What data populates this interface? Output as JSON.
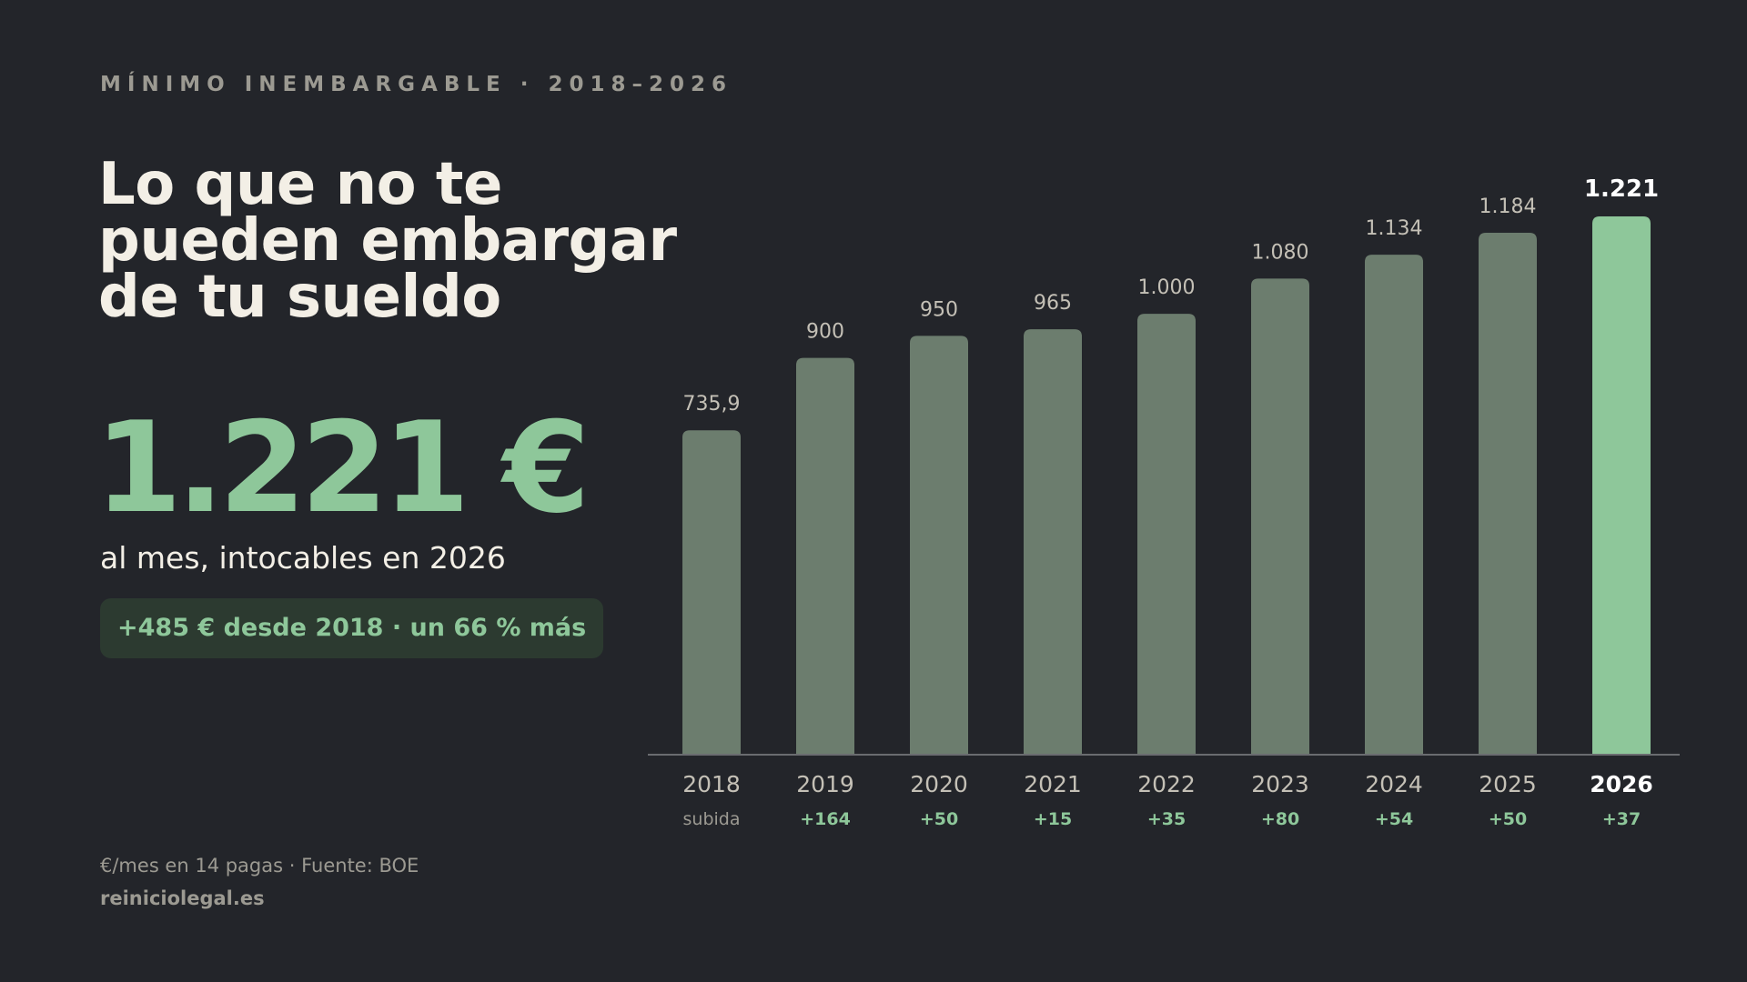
{
  "header": {
    "kicker": "MÍNIMO INEMBARGABLE · 2018–2026",
    "title": "Lo que no te pueden embargar de tu sueldo"
  },
  "highlight": {
    "value": "1.221 €",
    "subtitle": "al mes, intocables en 2026",
    "badge": "+485 € desde 2018 · un 66 % más"
  },
  "footer": {
    "note": "€/mes en 14 pagas · Fuente: BOE",
    "brand": "reiniciolegal.es"
  },
  "colors": {
    "background": "#23252a",
    "bar": "#6c7d6e",
    "bar_highlight": "#8ec79a",
    "accent": "#8ec79a",
    "axis": "#6a6c70"
  },
  "chart_data": {
    "type": "bar",
    "categories": [
      "2018",
      "2019",
      "2020",
      "2021",
      "2022",
      "2023",
      "2024",
      "2025",
      "2026"
    ],
    "values": [
      735.9,
      900,
      950,
      965,
      1000,
      1080,
      1134,
      1184,
      1221
    ],
    "value_labels": [
      "735,9",
      "900",
      "950",
      "965",
      "1.000",
      "1.080",
      "1.134",
      "1.184",
      "1.221"
    ],
    "delta_labels": [
      "subida",
      "+164",
      "+50",
      "+15",
      "+35",
      "+80",
      "+54",
      "+50",
      "+37"
    ],
    "highlight_category": "2026",
    "ylim": [
      0,
      1221
    ],
    "grid": false,
    "legend": "none"
  }
}
